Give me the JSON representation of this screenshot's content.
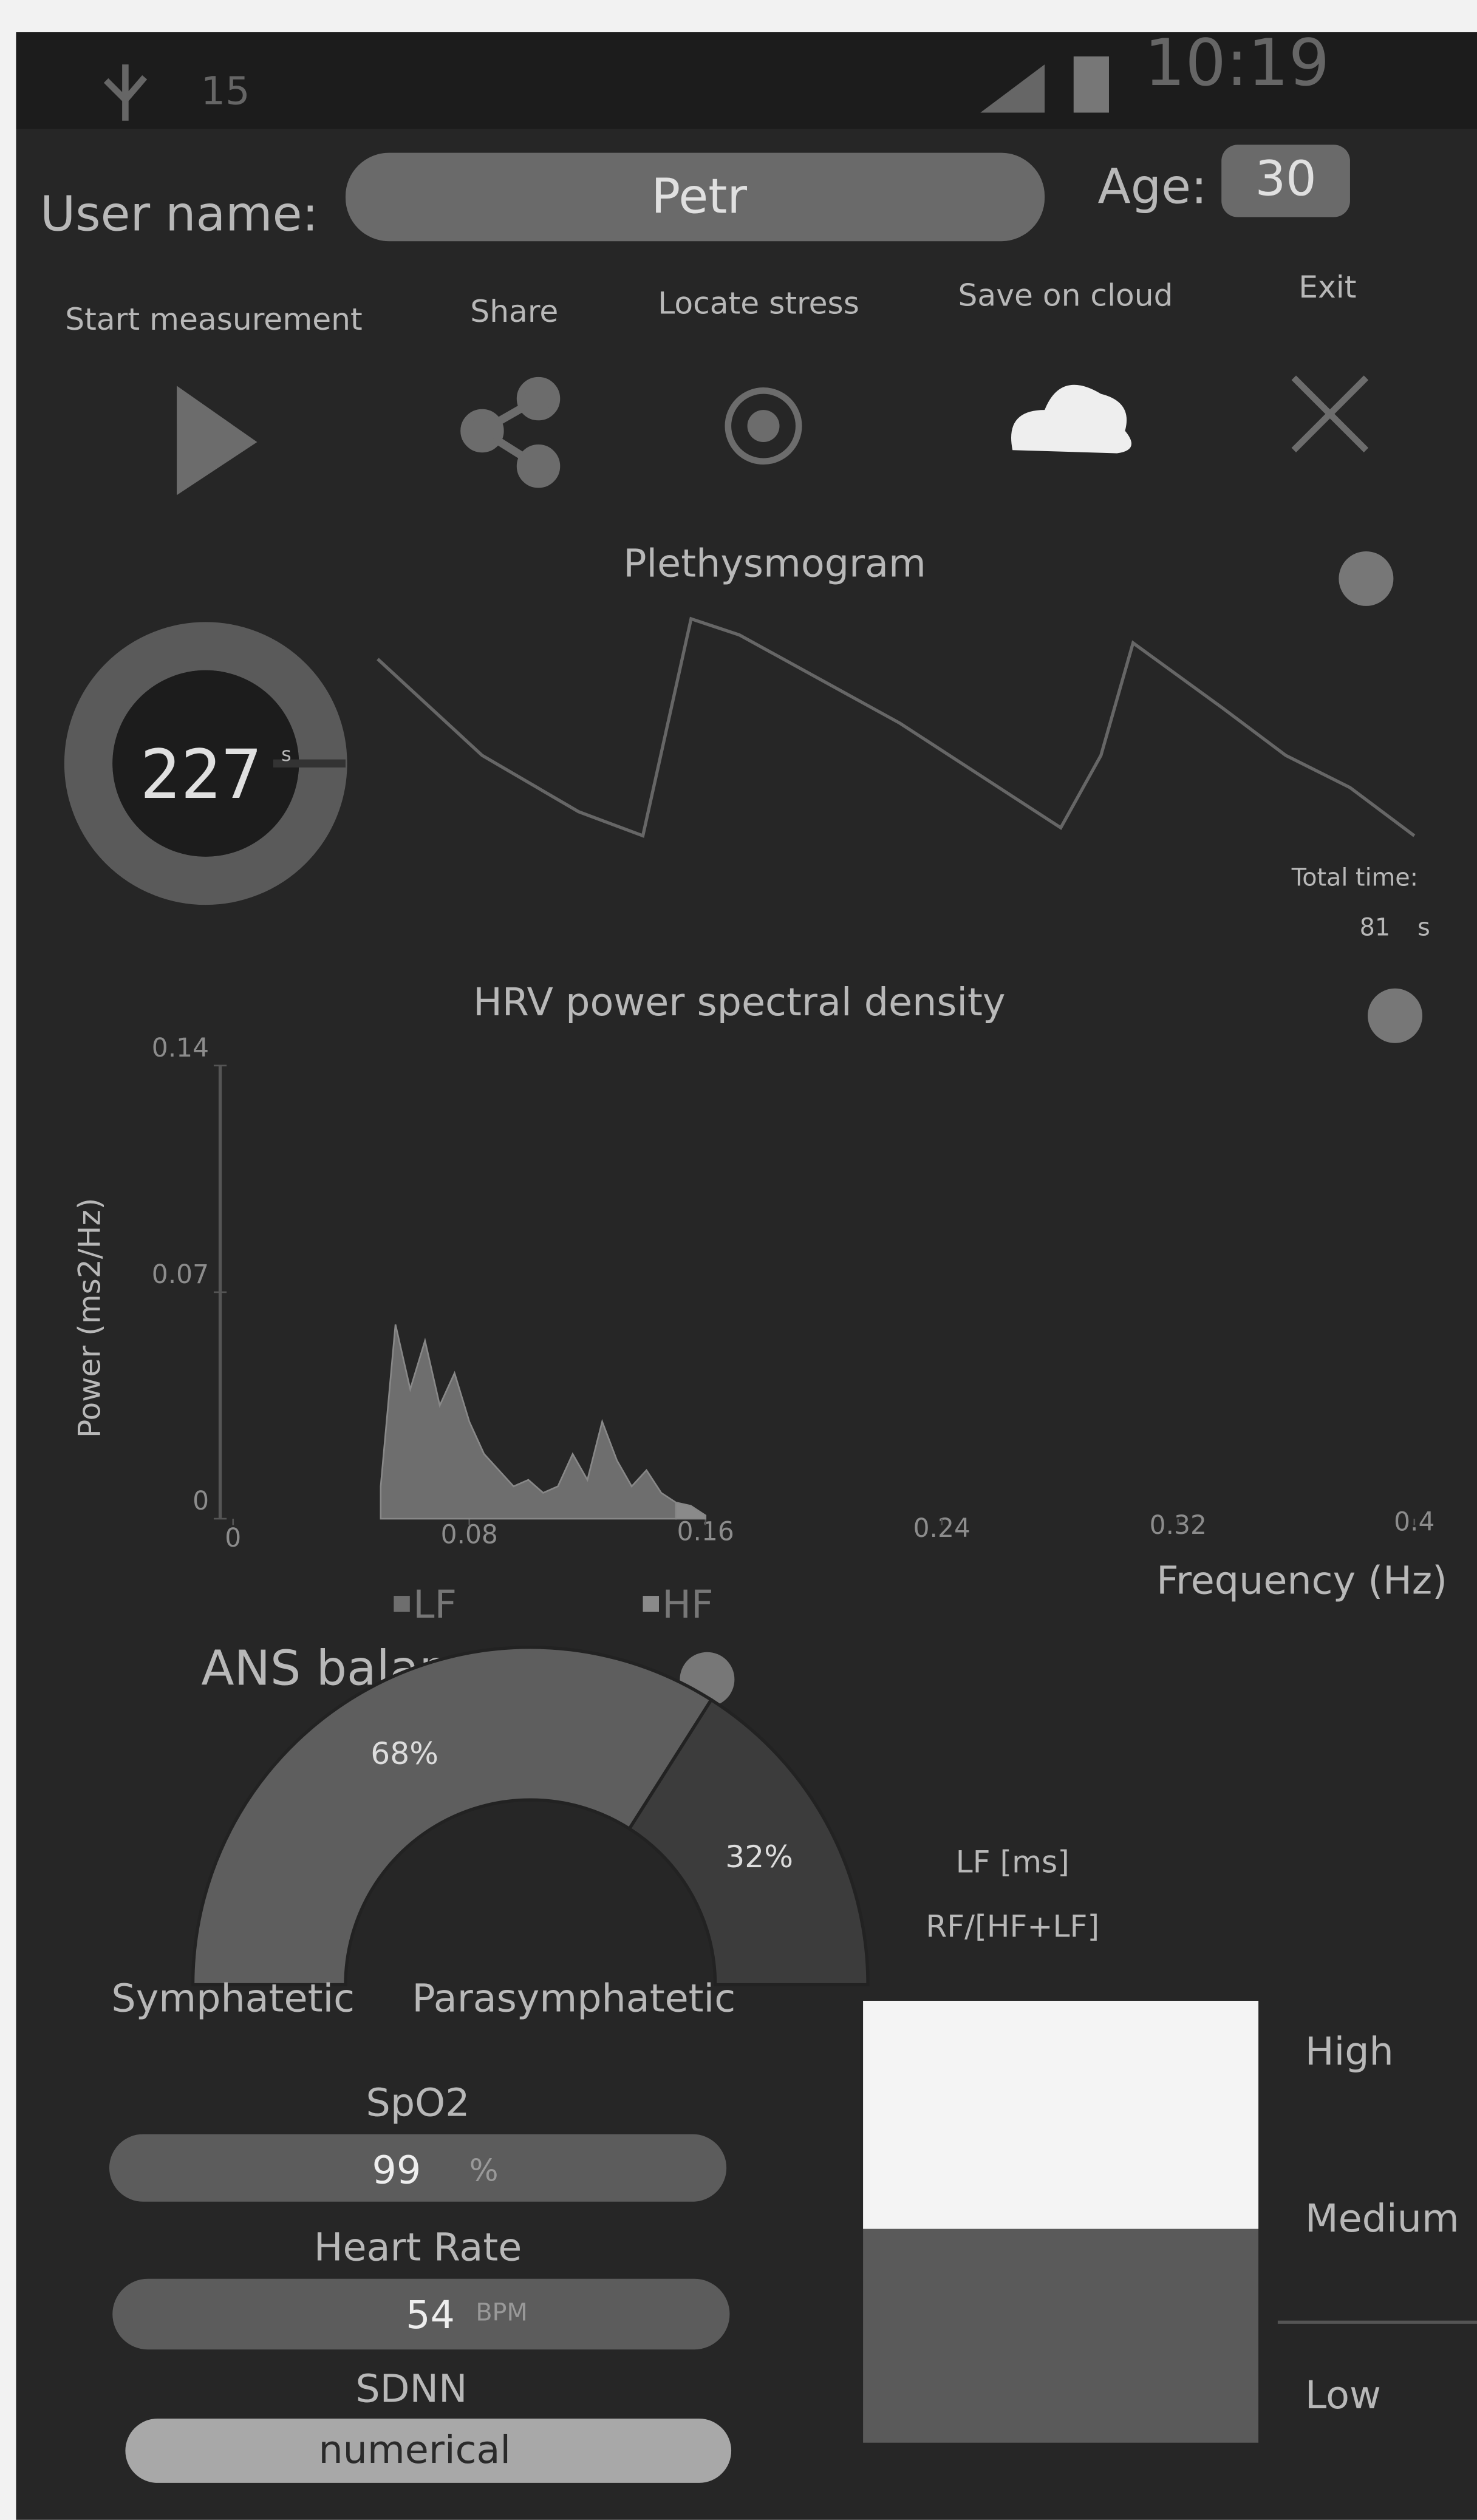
{
  "status_bar": {
    "notification_count": "15",
    "time": "10:19"
  },
  "user": {
    "name_label": "User name:",
    "name": "Petr",
    "age_label": "Age:",
    "age": 30
  },
  "toolbar": [
    {
      "label": "Start measurement"
    },
    {
      "label": "Share"
    },
    {
      "label": "Locate stress"
    },
    {
      "label": "Save on cloud"
    },
    {
      "label": "Exit"
    }
  ],
  "plethysmogram": {
    "title": "Plethysmogram",
    "timer": 227,
    "timer_unit": "s",
    "total_time_label": "Total time:",
    "total_time": 81,
    "total_time_unit": "s"
  },
  "chart_data": [
    {
      "type": "area",
      "title": "HRV power spectral density",
      "y_label": "Power (ms2/Hz)",
      "x_label": "Frequency (Hz)",
      "xlim": [
        0,
        0.4
      ],
      "ylim": [
        0,
        0.14
      ],
      "xticks": [
        0,
        0.08,
        0.16,
        0.24,
        0.32,
        0.4
      ],
      "yticks": [
        0,
        0.07,
        0.14
      ],
      "x": [
        0.05,
        0.055,
        0.06,
        0.065,
        0.07,
        0.075,
        0.08,
        0.085,
        0.09,
        0.095,
        0.1,
        0.105,
        0.11,
        0.115,
        0.12,
        0.125,
        0.13,
        0.135,
        0.14,
        0.145,
        0.15,
        0.155,
        0.16
      ],
      "series": [
        {
          "name": "LF",
          "color": "#6e6e6e",
          "values": [
            0.01,
            0.06,
            0.04,
            0.055,
            0.035,
            0.045,
            0.03,
            0.02,
            0.015,
            0.01,
            0.012,
            0.008,
            0.01,
            0.02,
            0.012,
            0.03,
            0.018,
            0.01,
            0.015,
            0.008,
            0.005,
            null,
            null
          ]
        },
        {
          "name": "HF",
          "color": "#8a8a8a",
          "values": [
            null,
            null,
            null,
            null,
            null,
            null,
            null,
            null,
            null,
            null,
            null,
            null,
            null,
            null,
            null,
            null,
            null,
            null,
            null,
            null,
            0.005,
            0.004,
            0.001
          ]
        }
      ]
    },
    {
      "type": "pie",
      "title": "ANS balance",
      "categories": [
        "Symphatetic",
        "Parasymphatetic"
      ],
      "values": [
        68,
        32
      ],
      "value_labels": [
        "68%",
        "32%"
      ],
      "colors": [
        "#5e5e5e",
        "#3c3c3c"
      ]
    }
  ],
  "lf_gauge": {
    "title": "LF [ms]",
    "subtitle": "RF/[HF+LF]",
    "levels": [
      "High",
      "Medium",
      "Low"
    ]
  },
  "metrics": [
    {
      "label": "SpO2",
      "value": 99,
      "unit": "%"
    },
    {
      "label": "Heart Rate",
      "value": 54,
      "unit": "BPM"
    },
    {
      "label": "SDNN",
      "value": "numerical"
    }
  ]
}
